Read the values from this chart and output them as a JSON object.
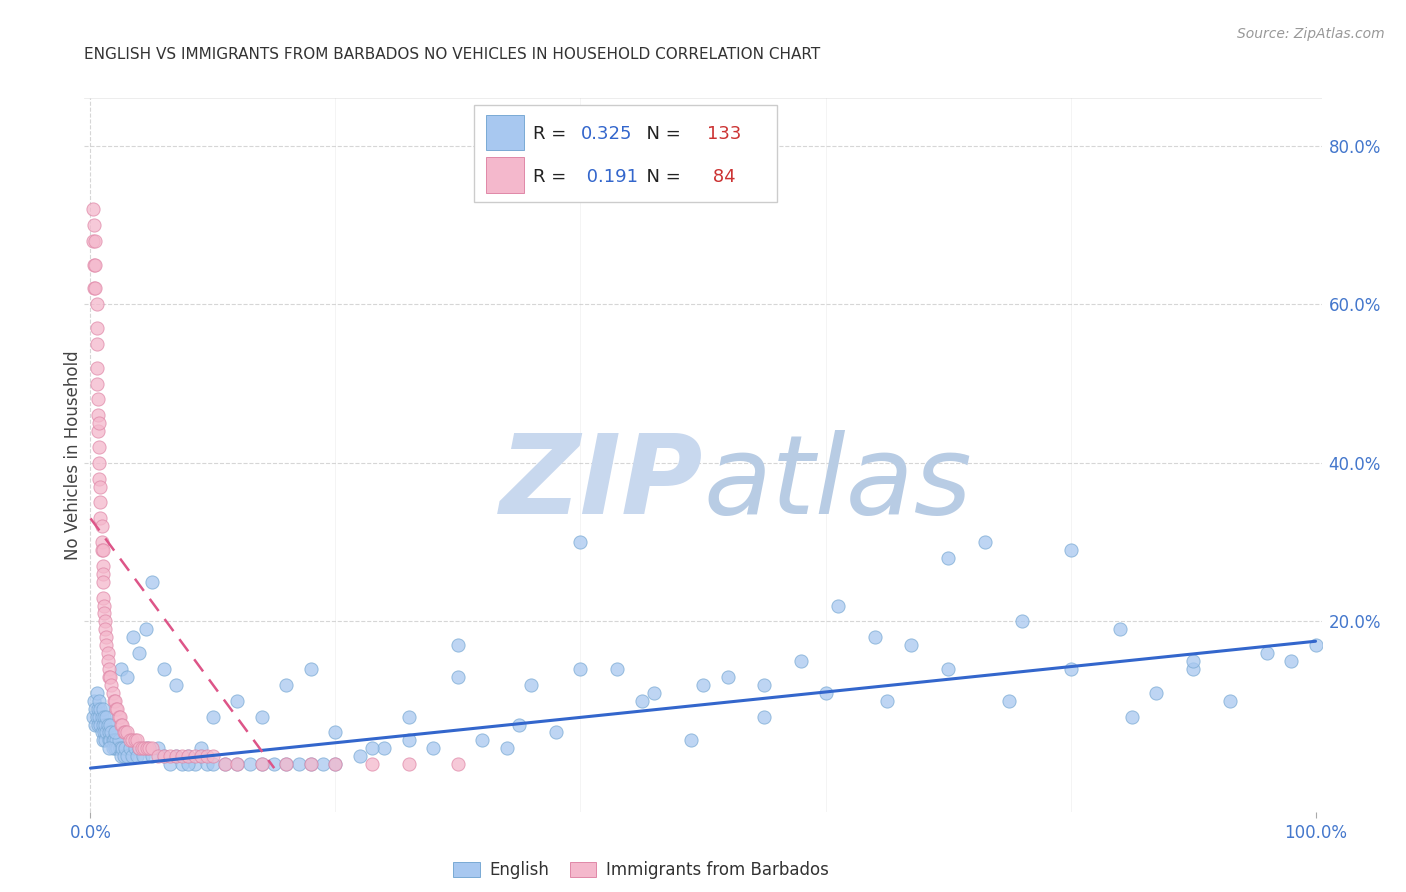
{
  "title": "ENGLISH VS IMMIGRANTS FROM BARBADOS NO VEHICLES IN HOUSEHOLD CORRELATION CHART",
  "source": "Source: ZipAtlas.com",
  "ylabel": "No Vehicles in Household",
  "blue_label": "English",
  "pink_label": "Immigrants from Barbados",
  "blue_R": "0.325",
  "blue_N": "133",
  "pink_R": "0.191",
  "pink_N": "84",
  "blue_color": "#a8c8f0",
  "blue_edge": "#7aaad4",
  "pink_color": "#f4b8cc",
  "pink_edge": "#e088a8",
  "blue_line_color": "#3366cc",
  "pink_line_color": "#dd5588",
  "watermark_zip_color": "#c8d8ee",
  "watermark_atlas_color": "#b8cce4",
  "right_axis_color": "#4477cc",
  "label_color": "#222222",
  "grid_color": "#cccccc",
  "source_color": "#999999",
  "ytick_right": [
    0.0,
    0.2,
    0.4,
    0.6,
    0.8
  ],
  "ytick_right_labels": [
    "",
    "20.0%",
    "40.0%",
    "60.0%",
    "80.0%"
  ],
  "xlim": [
    -0.005,
    1.005
  ],
  "ylim": [
    -0.04,
    0.86
  ],
  "blue_x": [
    0.002,
    0.003,
    0.004,
    0.004,
    0.005,
    0.005,
    0.006,
    0.006,
    0.007,
    0.007,
    0.008,
    0.008,
    0.009,
    0.009,
    0.01,
    0.01,
    0.01,
    0.011,
    0.011,
    0.012,
    0.012,
    0.013,
    0.013,
    0.014,
    0.015,
    0.015,
    0.016,
    0.016,
    0.017,
    0.018,
    0.018,
    0.019,
    0.02,
    0.021,
    0.022,
    0.023,
    0.024,
    0.025,
    0.026,
    0.027,
    0.028,
    0.03,
    0.032,
    0.034,
    0.036,
    0.038,
    0.04,
    0.043,
    0.046,
    0.05,
    0.055,
    0.06,
    0.065,
    0.07,
    0.075,
    0.08,
    0.085,
    0.09,
    0.095,
    0.1,
    0.11,
    0.12,
    0.13,
    0.14,
    0.15,
    0.16,
    0.17,
    0.18,
    0.19,
    0.2,
    0.22,
    0.24,
    0.26,
    0.28,
    0.3,
    0.32,
    0.34,
    0.36,
    0.38,
    0.4,
    0.43,
    0.46,
    0.49,
    0.52,
    0.55,
    0.58,
    0.61,
    0.64,
    0.67,
    0.7,
    0.73,
    0.76,
    0.8,
    0.84,
    0.87,
    0.9,
    0.93,
    0.96,
    0.98,
    1.0,
    0.015,
    0.02,
    0.025,
    0.03,
    0.035,
    0.04,
    0.045,
    0.05,
    0.06,
    0.07,
    0.08,
    0.09,
    0.1,
    0.12,
    0.14,
    0.16,
    0.18,
    0.2,
    0.23,
    0.26,
    0.3,
    0.35,
    0.4,
    0.45,
    0.5,
    0.55,
    0.6,
    0.65,
    0.7,
    0.75,
    0.8,
    0.85,
    0.9
  ],
  "blue_y": [
    0.08,
    0.1,
    0.09,
    0.07,
    0.11,
    0.08,
    0.09,
    0.07,
    0.1,
    0.08,
    0.09,
    0.07,
    0.08,
    0.06,
    0.09,
    0.07,
    0.05,
    0.08,
    0.06,
    0.07,
    0.05,
    0.08,
    0.06,
    0.07,
    0.05,
    0.06,
    0.07,
    0.05,
    0.06,
    0.05,
    0.04,
    0.05,
    0.04,
    0.05,
    0.04,
    0.05,
    0.04,
    0.03,
    0.04,
    0.03,
    0.04,
    0.03,
    0.04,
    0.03,
    0.04,
    0.03,
    0.04,
    0.03,
    0.04,
    0.03,
    0.04,
    0.03,
    0.02,
    0.03,
    0.02,
    0.03,
    0.02,
    0.03,
    0.02,
    0.02,
    0.02,
    0.02,
    0.02,
    0.02,
    0.02,
    0.02,
    0.02,
    0.02,
    0.02,
    0.02,
    0.03,
    0.04,
    0.05,
    0.04,
    0.17,
    0.05,
    0.04,
    0.12,
    0.06,
    0.3,
    0.14,
    0.11,
    0.05,
    0.13,
    0.12,
    0.15,
    0.22,
    0.18,
    0.17,
    0.28,
    0.3,
    0.2,
    0.29,
    0.19,
    0.11,
    0.14,
    0.1,
    0.16,
    0.15,
    0.17,
    0.04,
    0.06,
    0.14,
    0.13,
    0.18,
    0.16,
    0.19,
    0.25,
    0.14,
    0.12,
    0.02,
    0.04,
    0.08,
    0.1,
    0.08,
    0.12,
    0.14,
    0.06,
    0.04,
    0.08,
    0.13,
    0.07,
    0.14,
    0.1,
    0.12,
    0.08,
    0.11,
    0.1,
    0.14,
    0.1,
    0.14,
    0.08,
    0.15
  ],
  "pink_x": [
    0.002,
    0.002,
    0.003,
    0.003,
    0.003,
    0.004,
    0.004,
    0.004,
    0.005,
    0.005,
    0.005,
    0.005,
    0.005,
    0.006,
    0.006,
    0.006,
    0.007,
    0.007,
    0.007,
    0.007,
    0.008,
    0.008,
    0.008,
    0.009,
    0.009,
    0.009,
    0.01,
    0.01,
    0.01,
    0.01,
    0.01,
    0.011,
    0.011,
    0.012,
    0.012,
    0.013,
    0.013,
    0.014,
    0.014,
    0.015,
    0.015,
    0.016,
    0.017,
    0.018,
    0.019,
    0.02,
    0.021,
    0.022,
    0.023,
    0.024,
    0.025,
    0.026,
    0.027,
    0.028,
    0.03,
    0.032,
    0.034,
    0.036,
    0.038,
    0.04,
    0.042,
    0.044,
    0.046,
    0.048,
    0.05,
    0.055,
    0.06,
    0.065,
    0.07,
    0.075,
    0.08,
    0.085,
    0.09,
    0.095,
    0.1,
    0.11,
    0.12,
    0.14,
    0.16,
    0.18,
    0.2,
    0.23,
    0.26,
    0.3
  ],
  "pink_y": [
    0.72,
    0.68,
    0.7,
    0.65,
    0.62,
    0.68,
    0.65,
    0.62,
    0.6,
    0.57,
    0.55,
    0.52,
    0.5,
    0.48,
    0.46,
    0.44,
    0.45,
    0.42,
    0.4,
    0.38,
    0.37,
    0.35,
    0.33,
    0.32,
    0.3,
    0.29,
    0.29,
    0.27,
    0.26,
    0.25,
    0.23,
    0.22,
    0.21,
    0.2,
    0.19,
    0.18,
    0.17,
    0.16,
    0.15,
    0.14,
    0.13,
    0.13,
    0.12,
    0.11,
    0.1,
    0.1,
    0.09,
    0.09,
    0.08,
    0.08,
    0.07,
    0.07,
    0.06,
    0.06,
    0.06,
    0.05,
    0.05,
    0.05,
    0.05,
    0.04,
    0.04,
    0.04,
    0.04,
    0.04,
    0.04,
    0.03,
    0.03,
    0.03,
    0.03,
    0.03,
    0.03,
    0.03,
    0.03,
    0.03,
    0.03,
    0.02,
    0.02,
    0.02,
    0.02,
    0.02,
    0.02,
    0.02,
    0.02,
    0.02
  ],
  "blue_trend_x": [
    0.0,
    1.0
  ],
  "blue_trend_y": [
    0.015,
    0.175
  ],
  "pink_trend_x": [
    0.0,
    0.15
  ],
  "pink_trend_y": [
    0.33,
    0.015
  ]
}
